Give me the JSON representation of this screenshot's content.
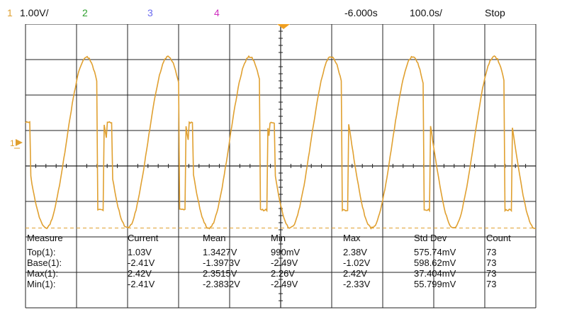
{
  "status_bar": {
    "ch1_label": "1",
    "ch1_scale": "1.00V/",
    "ch2_label": "2",
    "ch3_label": "3",
    "ch4_label": "4",
    "time_offset": "-6.000s",
    "time_scale": "100.0s/",
    "run_state": "Stop"
  },
  "screen": {
    "ch1_marker": "1",
    "divisions_x": 10,
    "divisions_y": 8,
    "volts_per_div": 1.0,
    "trace_color": "#e0a030",
    "grid_color": "#222222"
  },
  "measurements": {
    "headers": [
      "Measure",
      "Current",
      "Mean",
      "Min",
      "Max",
      "Std Dev",
      "Count"
    ],
    "rows": [
      {
        "name": "Top",
        "channel": "1",
        "values": [
          "1.03V",
          "1.3427V",
          "990mV",
          "2.38V",
          "575.74mV",
          "73"
        ]
      },
      {
        "name": "Base",
        "channel": "1",
        "values": [
          "-2.41V",
          "-1.3973V",
          "-2.49V",
          "-1.02V",
          "598.62mV",
          "73"
        ]
      },
      {
        "name": "Max",
        "channel": "1",
        "values": [
          "2.42V",
          "2.3515V",
          "2.26V",
          "2.42V",
          "37.404mV",
          "73"
        ]
      },
      {
        "name": "Min",
        "channel": "1",
        "values": [
          "-2.41V",
          "-2.3832V",
          "-2.49V",
          "-2.33V",
          "55.799mV",
          "73"
        ]
      }
    ]
  }
}
